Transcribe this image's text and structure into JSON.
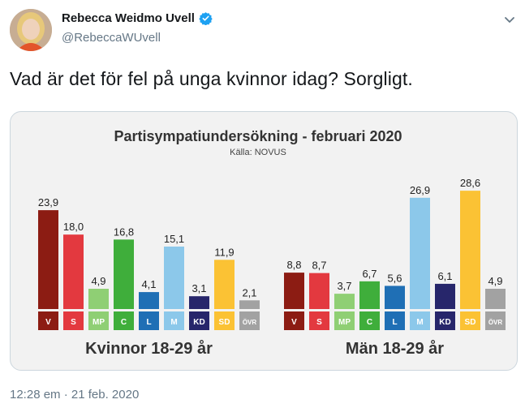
{
  "tweet": {
    "author_name": "Rebecca Weidmo Uvell",
    "handle": "@RebeccaWUvell",
    "text": "Vad är det för fel på unga kvinnor idag? Sorgligt.",
    "timestamp": "12:28 em · 21 feb. 2020",
    "verified_icon": "verified-badge-icon",
    "menu_icon": "chevron-down-icon",
    "verified_color": "#1da1f2"
  },
  "chart_data": {
    "type": "bar",
    "title": "Partisympatiundersökning - februari 2020",
    "subtitle": "Källa: NOVUS",
    "categories": [
      "V",
      "S",
      "MP",
      "C",
      "L",
      "M",
      "KD",
      "SD",
      "ÖVR"
    ],
    "colors": [
      "#8c1c13",
      "#e3393f",
      "#8fcf74",
      "#3fae3b",
      "#1f6fb5",
      "#8cc8ea",
      "#27266b",
      "#fbc234",
      "#a2a2a2"
    ],
    "label_colors": [
      "#8c1c13",
      "#e3393f",
      "#8fcf74",
      "#3fae3b",
      "#1f6fb5",
      "#8cc8ea",
      "#27266b",
      "#fbc234",
      "#a2a2a2"
    ],
    "ylim": [
      0,
      30
    ],
    "groups": [
      {
        "name": "Kvinnor 18-29 år",
        "values": [
          23.9,
          18.0,
          4.9,
          16.8,
          4.1,
          15.1,
          3.1,
          11.9,
          2.1
        ],
        "labels": [
          "23,9",
          "18,0",
          "4,9",
          "16,8",
          "4,1",
          "15,1",
          "3,1",
          "11,9",
          "2,1"
        ]
      },
      {
        "name": "Män 18-29 år",
        "values": [
          8.8,
          8.7,
          3.7,
          6.7,
          5.6,
          26.9,
          6.1,
          28.6,
          4.9
        ],
        "labels": [
          "8,8",
          "8,7",
          "3,7",
          "6,7",
          "5,6",
          "26,9",
          "6,1",
          "28,6",
          "4,9"
        ]
      }
    ]
  }
}
